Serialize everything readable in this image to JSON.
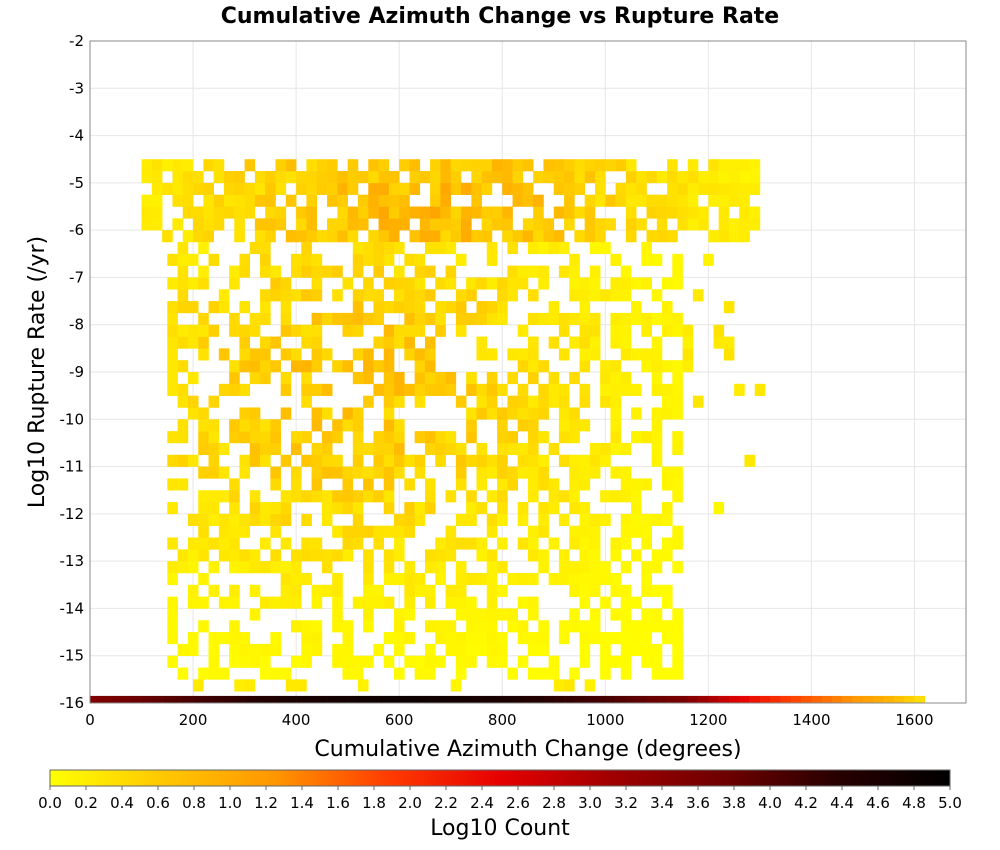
{
  "chart_data": {
    "type": "heatmap",
    "title": "Cumulative Azimuth Change vs Rupture Rate",
    "xlabel": "Cumulative Azimuth Change (degrees)",
    "ylabel": "Log10 Rupture Rate (/yr)",
    "xlim": [
      0,
      1700
    ],
    "ylim": [
      -16,
      -2
    ],
    "x_ticks": [
      "0",
      "200",
      "400",
      "600",
      "800",
      "1000",
      "1200",
      "1400",
      "1600"
    ],
    "y_ticks": [
      "-2",
      "-3",
      "-4",
      "-5",
      "-6",
      "-7",
      "-8",
      "-9",
      "-10",
      "-11",
      "-12",
      "-13",
      "-14",
      "-15",
      "-16"
    ],
    "grid": true,
    "colorbar": {
      "label": "Log10 Count",
      "range": [
        0.0,
        5.0
      ],
      "ticks": [
        "0.0",
        "0.2",
        "0.4",
        "0.6",
        "0.8",
        "1.0",
        "1.2",
        "1.4",
        "1.6",
        "1.8",
        "2.0",
        "2.2",
        "2.4",
        "2.6",
        "2.8",
        "3.0",
        "3.2",
        "3.4",
        "3.6",
        "3.8",
        "4.0",
        "4.2",
        "4.4",
        "4.6",
        "4.8",
        "5.0"
      ],
      "colors": [
        "#ffff00",
        "#ffc800",
        "#ff9600",
        "#ff3c00",
        "#e60000",
        "#a00000",
        "#6e0000",
        "#280000",
        "#000000"
      ],
      "position": "bottom"
    },
    "bin_size": {
      "x": 20,
      "y": 0.25
    },
    "clusters": [
      {
        "x_range": [
          100,
          1300
        ],
        "y_range": [
          -6.25,
          -4.5
        ],
        "density": 0.75,
        "peak": 0.9,
        "peak_center": [
          650,
          -5.5
        ]
      },
      {
        "x_range": [
          150,
          1150
        ],
        "y_range": [
          -15.5,
          -6.25
        ],
        "density": 0.55,
        "peak": 0.75,
        "peak_center": [
          500,
          -9.5
        ]
      },
      {
        "x_range": [
          1150,
          1300
        ],
        "y_range": [
          -12,
          -6.5
        ],
        "density": 0.12,
        "peak": 0.3,
        "peak_center": [
          1200,
          -9
        ]
      }
    ],
    "bottom_row": {
      "y": -16,
      "x_range": [
        0,
        1620
      ],
      "profile": [
        {
          "x": 0,
          "v": 3.5
        },
        {
          "x": 200,
          "v": 4.1
        },
        {
          "x": 400,
          "v": 4.6
        },
        {
          "x": 600,
          "v": 4.8
        },
        {
          "x": 800,
          "v": 4.6
        },
        {
          "x": 1000,
          "v": 4.1
        },
        {
          "x": 1150,
          "v": 3.6
        },
        {
          "x": 1250,
          "v": 2.6
        },
        {
          "x": 1350,
          "v": 1.9
        },
        {
          "x": 1450,
          "v": 1.4
        },
        {
          "x": 1550,
          "v": 0.9
        },
        {
          "x": 1620,
          "v": 0.3
        }
      ]
    },
    "scatter_row": {
      "y": -15.75,
      "x_range": [
        180,
        1160
      ],
      "density": 0.35,
      "value": 0.2
    }
  }
}
